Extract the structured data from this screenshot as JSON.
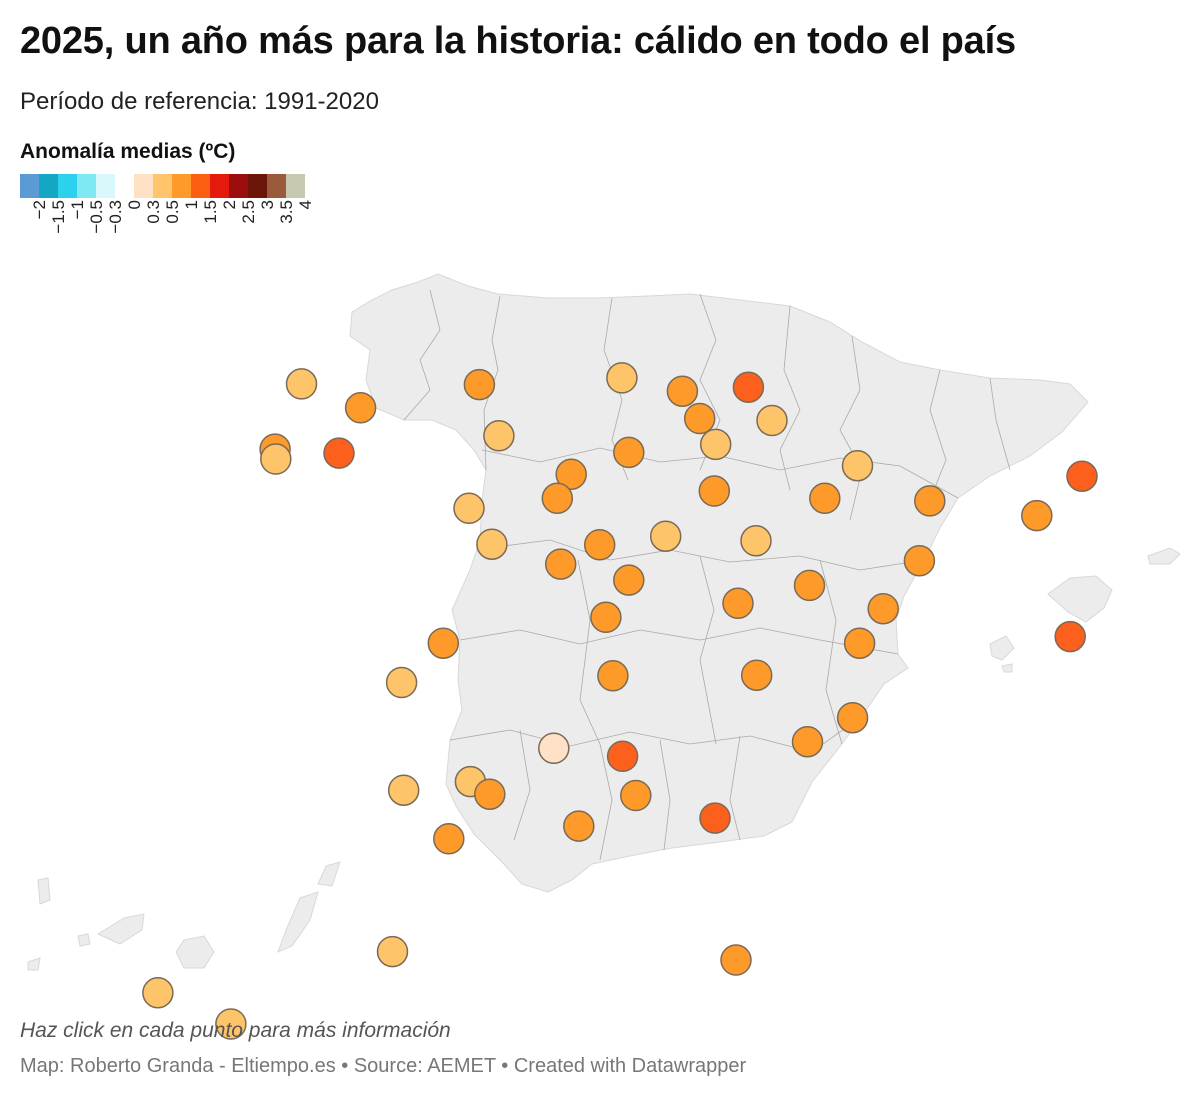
{
  "title": "2025, un año más para la historia: cálido en todo el país",
  "subtitle": "Período de referencia: 1991-2020",
  "legend": {
    "title": "Anomalía medias (ºC)",
    "colors": [
      "#5a9bd5",
      "#13a7c3",
      "#2bd2ee",
      "#7fe8f3",
      "#d8f8fb",
      "#ffffff",
      "#ffe1c5",
      "#ffc46c",
      "#fd9a2a",
      "#fd5f12",
      "#e41a0c",
      "#9c0d0d",
      "#6b1508",
      "#9a5a3c",
      "#c8c9b1"
    ],
    "tick_labels": [
      "−2",
      "−1.5",
      "−1",
      "−0.5",
      "−0.3",
      "0",
      "0.3",
      "0.5",
      "1",
      "1.5",
      "2",
      "2.5",
      "3",
      "3.5",
      "4"
    ]
  },
  "map": {
    "land_color": "#ececec",
    "border_color": "#aaaaaa",
    "marker_stroke": "#7a6a56"
  },
  "stations": [
    {
      "lon": -8.41,
      "lat": 43.37,
      "fill": "#fdc46a"
    },
    {
      "lon": -7.56,
      "lat": 43.01,
      "fill": "#fd9a2a"
    },
    {
      "lon": -5.85,
      "lat": 43.36,
      "fill": "#fd9a2a"
    },
    {
      "lon": -3.8,
      "lat": 43.46,
      "fill": "#fdc46a"
    },
    {
      "lon": -2.93,
      "lat": 43.26,
      "fill": "#fd9a2a"
    },
    {
      "lon": -1.98,
      "lat": 43.32,
      "fill": "#fd5f1c"
    },
    {
      "lon": -2.68,
      "lat": 42.85,
      "fill": "#fd9a2a"
    },
    {
      "lon": -1.64,
      "lat": 42.82,
      "fill": "#fdc46a"
    },
    {
      "lon": -8.79,
      "lat": 42.39,
      "fill": "#fd9a2a"
    },
    {
      "lon": -8.78,
      "lat": 42.24,
      "fill": "#fdc46a"
    },
    {
      "lon": -7.87,
      "lat": 42.33,
      "fill": "#fd5f1c"
    },
    {
      "lon": -5.57,
      "lat": 42.59,
      "fill": "#fdc46a"
    },
    {
      "lon": -3.7,
      "lat": 42.34,
      "fill": "#fd9a2a"
    },
    {
      "lon": -2.45,
      "lat": 42.46,
      "fill": "#fdc46a"
    },
    {
      "lon": -4.53,
      "lat": 42.01,
      "fill": "#fd9a2a"
    },
    {
      "lon": -4.73,
      "lat": 41.65,
      "fill": "#fd9a2a"
    },
    {
      "lon": -6.0,
      "lat": 41.5,
      "fill": "#fdc46a"
    },
    {
      "lon": -2.47,
      "lat": 41.76,
      "fill": "#fd9a2a"
    },
    {
      "lon": -0.88,
      "lat": 41.65,
      "fill": "#fd9a2a"
    },
    {
      "lon": 0.63,
      "lat": 41.61,
      "fill": "#fd9a2a"
    },
    {
      "lon": 2.17,
      "lat": 41.39,
      "fill": "#fd9a2a"
    },
    {
      "lon": 2.82,
      "lat": 41.98,
      "fill": "#fd5f1c"
    },
    {
      "lon": -0.41,
      "lat": 42.14,
      "fill": "#fdc46a"
    },
    {
      "lon": -5.67,
      "lat": 40.96,
      "fill": "#fdc46a"
    },
    {
      "lon": -4.12,
      "lat": 40.95,
      "fill": "#fd9a2a"
    },
    {
      "lon": -3.17,
      "lat": 41.08,
      "fill": "#fdc46a"
    },
    {
      "lon": -1.87,
      "lat": 41.01,
      "fill": "#fdc46a"
    },
    {
      "lon": -4.68,
      "lat": 40.66,
      "fill": "#fd9a2a"
    },
    {
      "lon": -3.7,
      "lat": 40.42,
      "fill": "#fd9a2a"
    },
    {
      "lon": -1.1,
      "lat": 40.34,
      "fill": "#fd9a2a"
    },
    {
      "lon": 0.48,
      "lat": 40.71,
      "fill": "#fd9a2a"
    },
    {
      "lon": -2.13,
      "lat": 40.07,
      "fill": "#fd9a2a"
    },
    {
      "lon": -0.04,
      "lat": 39.99,
      "fill": "#fd9a2a"
    },
    {
      "lon": -4.03,
      "lat": 39.86,
      "fill": "#fd9a2a"
    },
    {
      "lon": -0.38,
      "lat": 39.47,
      "fill": "#fd9a2a"
    },
    {
      "lon": 2.65,
      "lat": 39.57,
      "fill": "#fd5f1c"
    },
    {
      "lon": -6.37,
      "lat": 39.47,
      "fill": "#fd9a2a"
    },
    {
      "lon": -6.97,
      "lat": 38.88,
      "fill": "#fdc46a"
    },
    {
      "lon": -3.93,
      "lat": 38.98,
      "fill": "#fd9a2a"
    },
    {
      "lon": -1.86,
      "lat": 38.99,
      "fill": "#fd9a2a"
    },
    {
      "lon": -0.48,
      "lat": 38.35,
      "fill": "#fd9a2a"
    },
    {
      "lon": -1.13,
      "lat": 37.99,
      "fill": "#fd9a2a"
    },
    {
      "lon": -4.78,
      "lat": 37.89,
      "fill": "#fee1c6"
    },
    {
      "lon": -3.79,
      "lat": 37.77,
      "fill": "#fd5f1c"
    },
    {
      "lon": -6.94,
      "lat": 37.26,
      "fill": "#fdc46a"
    },
    {
      "lon": -5.98,
      "lat": 37.39,
      "fill": "#fdc46a"
    },
    {
      "lon": -5.7,
      "lat": 37.2,
      "fill": "#fd9a2a"
    },
    {
      "lon": -3.6,
      "lat": 37.18,
      "fill": "#fd9a2a"
    },
    {
      "lon": -2.46,
      "lat": 36.84,
      "fill": "#fd5f1c"
    },
    {
      "lon": -6.29,
      "lat": 36.53,
      "fill": "#fd9a2a"
    },
    {
      "lon": -4.42,
      "lat": 36.72,
      "fill": "#fd9a2a"
    },
    {
      "lon": -2.94,
      "lat": 35.29,
      "fill": "#fd9a2a",
      "inset": true
    },
    {
      "lon": -13.55,
      "lat": 28.96,
      "fill": "#fdc46a",
      "inset": true
    },
    {
      "lon": -16.25,
      "lat": 28.47,
      "fill": "#fdc46a",
      "inset": true
    },
    {
      "lon": -15.41,
      "lat": 28.1,
      "fill": "#fdc46a",
      "inset": true
    }
  ],
  "note": "Haz click en cada punto para más información",
  "credit": "Map: Roberto Granda - Eltiempo.es • Source: AEMET • Created with Datawrapper"
}
